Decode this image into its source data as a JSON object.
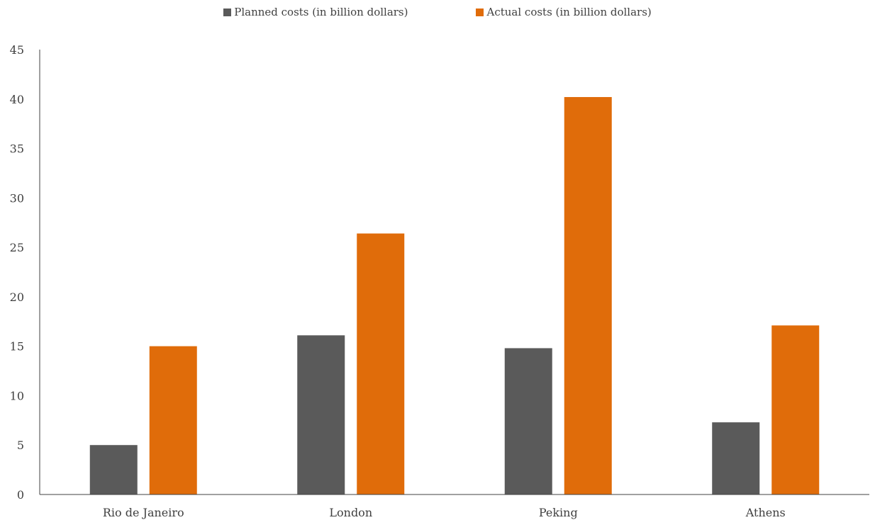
{
  "chart_data": {
    "type": "bar",
    "categories": [
      "Rio de Janeiro",
      "London",
      "Peking",
      "Athens"
    ],
    "series": [
      {
        "name": "Planned costs (in billion dollars)",
        "values": [
          5.0,
          16.1,
          14.8,
          7.3
        ],
        "color": "#5a5a5a"
      },
      {
        "name": "Actual costs (in billion dollars)",
        "values": [
          15.0,
          26.4,
          40.2,
          17.1
        ],
        "color": "#e06c0a"
      }
    ],
    "yticks": [
      0,
      5,
      10,
      15,
      20,
      25,
      30,
      35,
      40,
      45
    ],
    "ylim": [
      0,
      45
    ],
    "grid": false,
    "legend_position": "top-center"
  }
}
